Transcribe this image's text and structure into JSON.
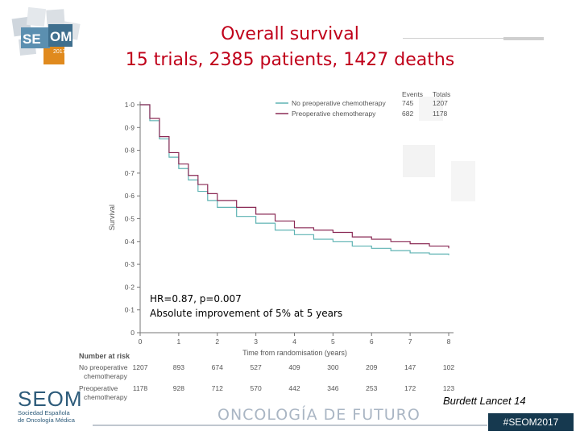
{
  "slide": {
    "title_line1": "Overall survival",
    "title_line2": "15 trials, 2385 patients, 1427 deaths",
    "hr_text": "HR=0.87, p=0.007",
    "improvement_text": "Absolute improvement of 5% at 5 years",
    "citation": "Burdett Lancet 14",
    "hashtag": "#SEOM2017",
    "tagline": "ONCOLOGÍA DE FUTURO",
    "logo_main": "SEOM",
    "logo_sub": [
      "Sociedad Española",
      "de Oncología Médica"
    ],
    "cube_logo": [
      "SE",
      "OM",
      "2017"
    ]
  },
  "chart_data": {
    "type": "line",
    "title": "",
    "xlabel": "Time from randomisation (years)",
    "ylabel": "Survival",
    "xlim": [
      0,
      8
    ],
    "ylim": [
      0,
      1.0
    ],
    "x_ticks": [
      "0",
      "1",
      "2",
      "3",
      "4",
      "5",
      "6",
      "7",
      "8"
    ],
    "y_ticks": [
      "0",
      "0·1",
      "0·2",
      "0·3",
      "0·4",
      "0·5",
      "0·6",
      "0·7",
      "0·8",
      "0·9",
      "1·0"
    ],
    "x": [
      0,
      0.25,
      0.5,
      0.75,
      1,
      1.25,
      1.5,
      1.75,
      2,
      2.5,
      3,
      3.5,
      4,
      4.5,
      5,
      5.5,
      6,
      6.5,
      7,
      7.5,
      8
    ],
    "series": [
      {
        "name": "No preoperative chemotherapy",
        "color": "#5fb3b3",
        "events": "745",
        "totals": "1207",
        "values": [
          1.0,
          0.93,
          0.85,
          0.77,
          0.72,
          0.67,
          0.62,
          0.58,
          0.55,
          0.51,
          0.48,
          0.45,
          0.43,
          0.41,
          0.4,
          0.38,
          0.37,
          0.36,
          0.35,
          0.345,
          0.34
        ]
      },
      {
        "name": "Preoperative chemotherapy",
        "color": "#8a2a55",
        "events": "682",
        "totals": "1178",
        "values": [
          1.0,
          0.94,
          0.86,
          0.79,
          0.74,
          0.69,
          0.65,
          0.61,
          0.58,
          0.55,
          0.52,
          0.49,
          0.46,
          0.45,
          0.44,
          0.42,
          0.41,
          0.4,
          0.39,
          0.38,
          0.37
        ]
      }
    ],
    "legend_headers": [
      "Events",
      "Totals"
    ],
    "legend_position": "top-right",
    "number_at_risk": {
      "header": "Number at risk",
      "rows": [
        {
          "label_lines": [
            "No preoperative",
            "chemotherapy"
          ],
          "values": [
            "1207",
            "893",
            "674",
            "527",
            "409",
            "300",
            "209",
            "147",
            "102"
          ]
        },
        {
          "label_lines": [
            "Preoperative",
            "chemotherapy"
          ],
          "values": [
            "1178",
            "928",
            "712",
            "570",
            "442",
            "346",
            "253",
            "172",
            "123"
          ]
        }
      ]
    }
  }
}
